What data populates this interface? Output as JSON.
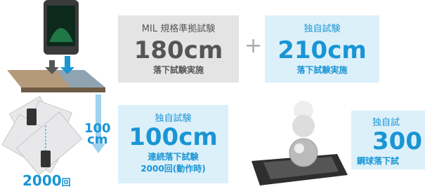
{
  "tests": [
    {
      "label": "MIL 規格準拠試験",
      "value": "180cm",
      "description": "落下試験実施"
    },
    {
      "label": "独自試験",
      "value": "210cm",
      "description": "落下試験実施"
    },
    {
      "label": "独自試験",
      "value": "100cm",
      "description": "連続落下試験",
      "detail": "2000回(動作時)"
    },
    {
      "label": "独自試",
      "value": "300",
      "description": "鋼球落下試"
    }
  ],
  "plus": "+",
  "rotation": {
    "height_value": "100",
    "height_unit": "cm",
    "count": "2000",
    "count_unit": "回"
  }
}
